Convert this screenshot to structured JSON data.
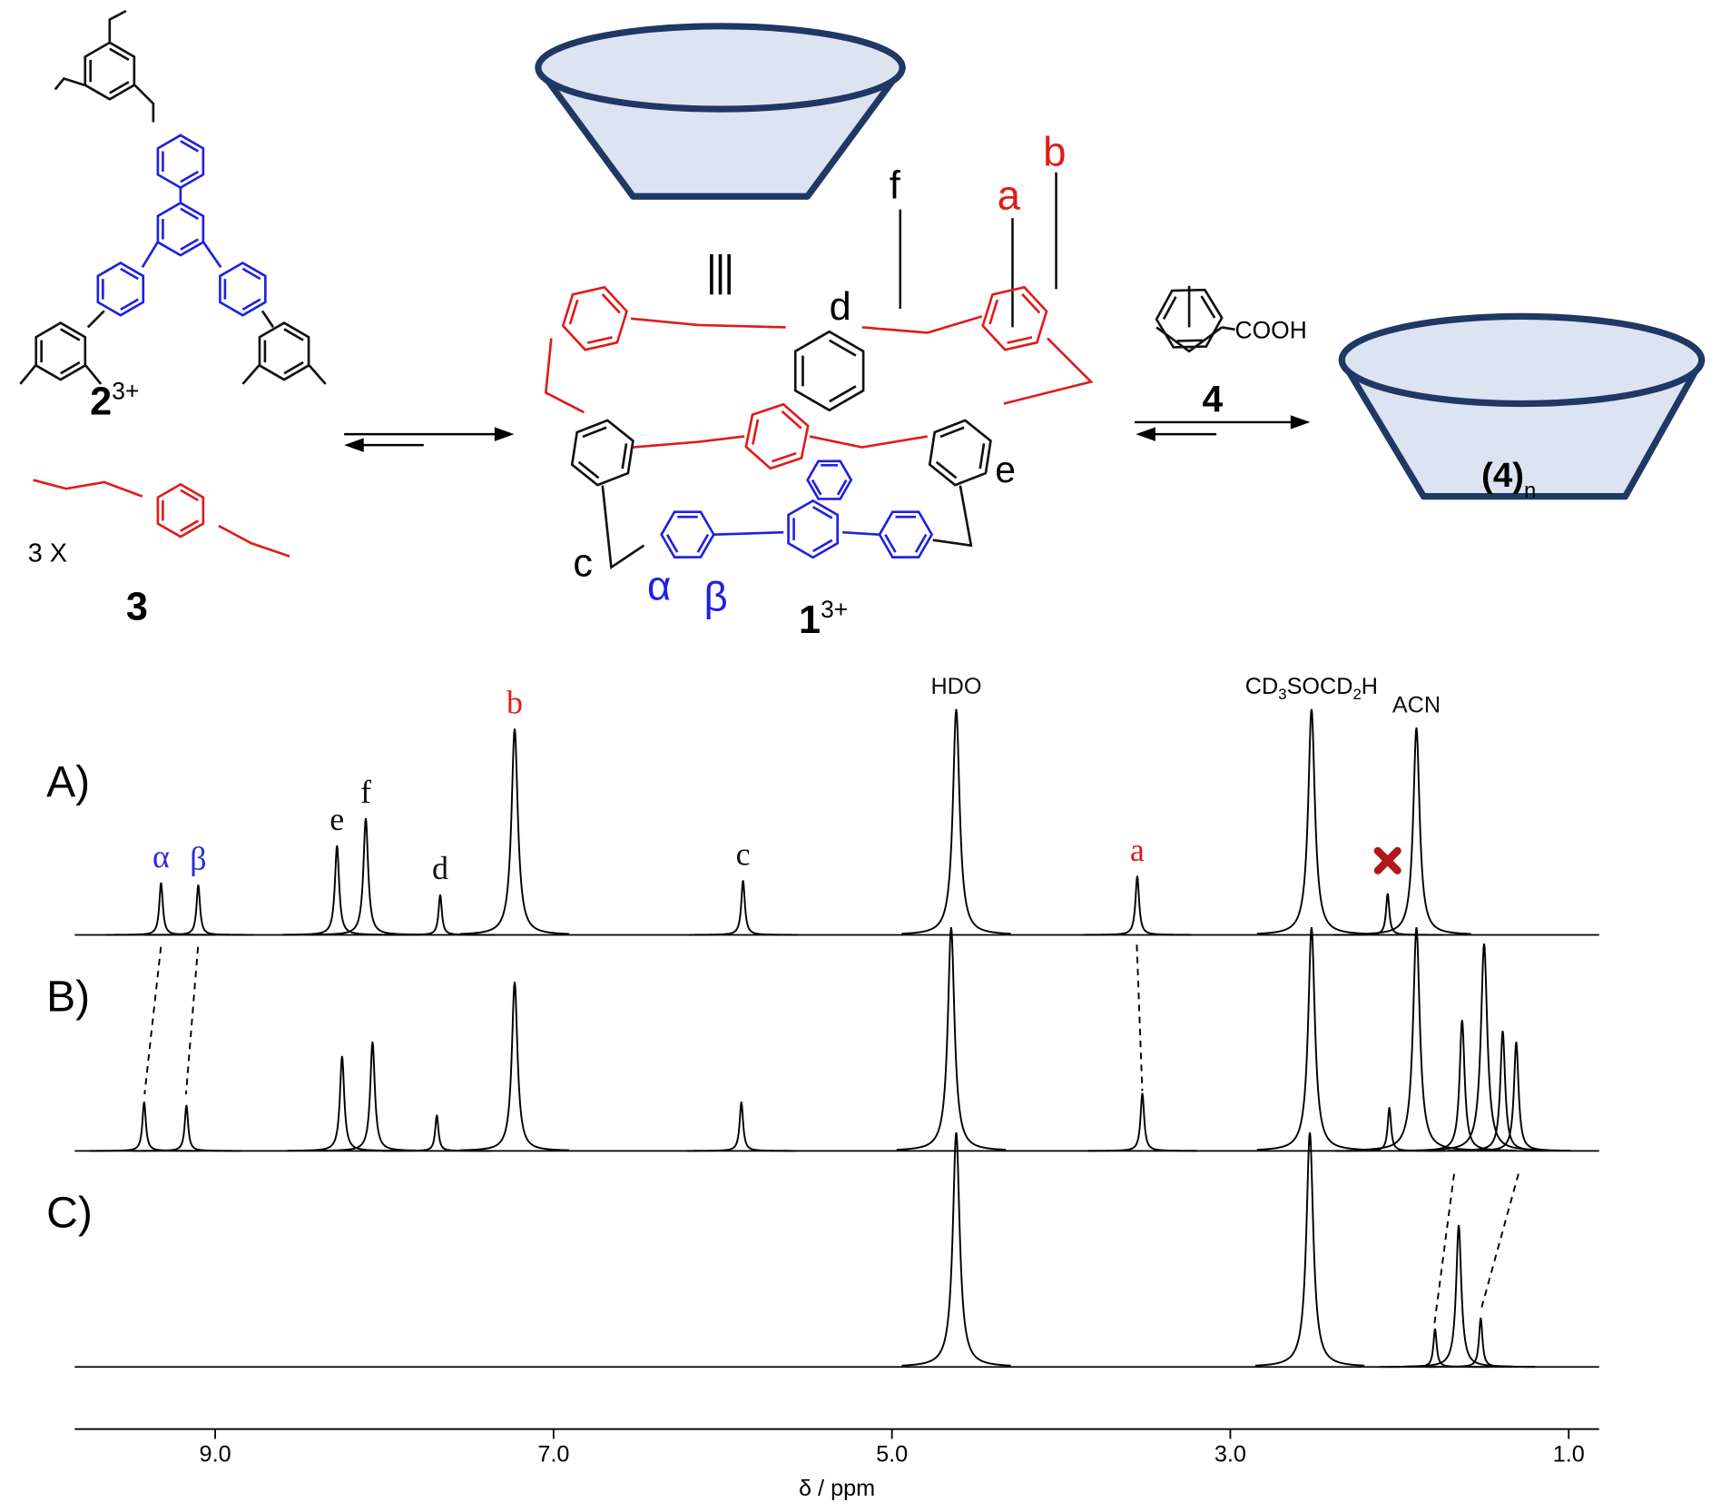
{
  "scheme": {
    "compound_2": {
      "number": "2",
      "charge": "3+"
    },
    "compound_3": {
      "number": "3",
      "count": "3 X"
    },
    "compound_1": {
      "number": "1",
      "charge": "3+"
    },
    "guest_4": {
      "number": "4",
      "group": "COOH"
    },
    "inclusion": {
      "text": "(4)",
      "subscript": "n"
    },
    "proton_labels": {
      "d": "d",
      "f": "f",
      "a": "a",
      "b": "b",
      "e": "e",
      "c": "c",
      "alpha": "α",
      "beta": "β"
    }
  },
  "spectra": {
    "xlim": [
      9.83,
      0.82
    ],
    "xticks": [
      {
        "value": 9,
        "label": "9.0"
      },
      {
        "value": 7,
        "label": "7.0"
      },
      {
        "value": 5,
        "label": "5.0"
      },
      {
        "value": 3,
        "label": "3.0"
      },
      {
        "value": 1,
        "label": "1.0"
      }
    ],
    "xlabel": "δ / ppm",
    "solvent_label_parts": [
      "CD",
      "3",
      "SOCD",
      "2",
      "H"
    ],
    "traces": [
      {
        "name": "A)",
        "peaks": [
          {
            "ppm": 9.32,
            "height": 48,
            "label": "α",
            "label_color": "#2b2bd6"
          },
          {
            "ppm": 9.1,
            "height": 46,
            "label": "β",
            "label_color": "#2b2bd6"
          },
          {
            "ppm": 8.28,
            "height": 82,
            "label": "e",
            "label_color": "#111111"
          },
          {
            "ppm": 8.11,
            "height": 107,
            "label": "f",
            "label_color": "#111111"
          },
          {
            "ppm": 7.67,
            "height": 37,
            "label": "d",
            "label_color": "#111111"
          },
          {
            "ppm": 7.23,
            "height": 189,
            "label": "b",
            "label_color": "#e01b1b"
          },
          {
            "ppm": 5.88,
            "height": 50,
            "label": "c",
            "label_color": "#111111"
          },
          {
            "ppm": 4.62,
            "height": 207,
            "label": "HDO",
            "label_color": "#111111"
          },
          {
            "ppm": 3.55,
            "height": 54,
            "label": "a",
            "label_color": "#e01b1b"
          },
          {
            "ppm": 2.07,
            "height": 38
          },
          {
            "ppm": 2.52,
            "height": 207
          },
          {
            "ppm": 1.9,
            "height": 190,
            "label": "ACN",
            "label_color": "#111111"
          }
        ]
      },
      {
        "name": "B)",
        "peaks": [
          {
            "ppm": 9.42,
            "height": 45
          },
          {
            "ppm": 9.17,
            "height": 42
          },
          {
            "ppm": 8.25,
            "height": 87
          },
          {
            "ppm": 8.07,
            "height": 100
          },
          {
            "ppm": 7.69,
            "height": 33
          },
          {
            "ppm": 7.23,
            "height": 155
          },
          {
            "ppm": 5.89,
            "height": 45
          },
          {
            "ppm": 4.65,
            "height": 205
          },
          {
            "ppm": 3.52,
            "height": 53
          },
          {
            "ppm": 2.06,
            "height": 40
          },
          {
            "ppm": 2.52,
            "height": 205
          },
          {
            "ppm": 1.9,
            "height": 205
          },
          {
            "ppm": 1.63,
            "height": 120
          },
          {
            "ppm": 1.5,
            "height": 190
          },
          {
            "ppm": 1.39,
            "height": 110
          },
          {
            "ppm": 1.31,
            "height": 100
          }
        ]
      },
      {
        "name": "C)",
        "peaks": [
          {
            "ppm": 4.62,
            "height": 215
          },
          {
            "ppm": 2.53,
            "height": 215
          },
          {
            "ppm": 1.79,
            "height": 35
          },
          {
            "ppm": 1.65,
            "height": 130
          },
          {
            "ppm": 1.52,
            "height": 45
          }
        ]
      }
    ]
  }
}
